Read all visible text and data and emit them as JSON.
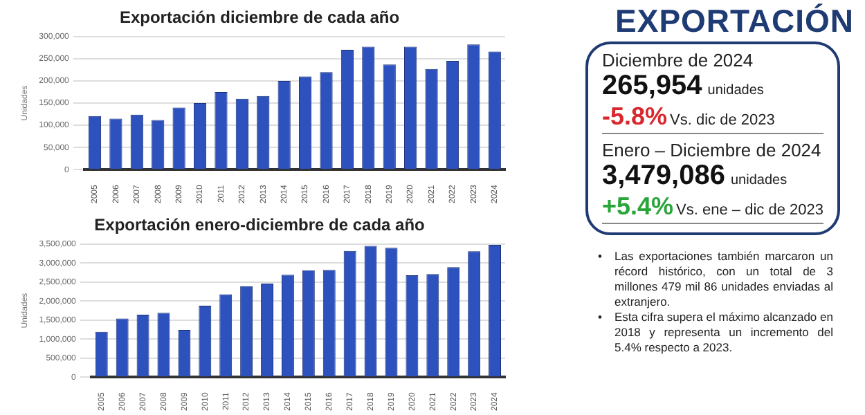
{
  "chart_data": [
    {
      "type": "bar",
      "title": "Exportación diciembre de cada año",
      "ylabel": "Unidades",
      "color": "#2d52bd",
      "grid": "y",
      "categories": [
        "2005",
        "2006",
        "2007",
        "2008",
        "2009",
        "2010",
        "2011",
        "2012",
        "2013",
        "2014",
        "2015",
        "2016",
        "2017",
        "2018",
        "2019",
        "2020",
        "2021",
        "2022",
        "2023",
        "2024"
      ],
      "values": [
        121000,
        115000,
        124000,
        112000,
        140000,
        150000,
        175000,
        160000,
        166000,
        200000,
        210000,
        220000,
        270000,
        277000,
        237000,
        277000,
        227000,
        245000,
        282000,
        266000
      ],
      "ylim": [
        0,
        300000
      ],
      "yticks": [
        {
          "value": 0,
          "label": "0"
        },
        {
          "value": 50000,
          "label": "50,000"
        },
        {
          "value": 100000,
          "label": "100,000"
        },
        {
          "value": 150000,
          "label": "150,000"
        },
        {
          "value": 200000,
          "label": "200,000"
        },
        {
          "value": 250000,
          "label": "250,000"
        },
        {
          "value": 300000,
          "label": "300,000"
        }
      ]
    },
    {
      "type": "bar",
      "title": "Exportación enero-diciembre de cada año",
      "ylabel": "Unidades",
      "color": "#2d52bd",
      "grid": "y",
      "categories": [
        "2005",
        "2006",
        "2007",
        "2008",
        "2009",
        "2010",
        "2011",
        "2012",
        "2013",
        "2014",
        "2015",
        "2016",
        "2017",
        "2018",
        "2019",
        "2020",
        "2021",
        "2022",
        "2023",
        "2024"
      ],
      "values": [
        1190000,
        1540000,
        1640000,
        1690000,
        1240000,
        1880000,
        2180000,
        2390000,
        2460000,
        2690000,
        2810000,
        2820000,
        3320000,
        3450000,
        3400000,
        2680000,
        2710000,
        2890000,
        3310000,
        3480000
      ],
      "ylim": [
        0,
        3500000
      ],
      "yticks": [
        {
          "value": 0,
          "label": "0"
        },
        {
          "value": 500000,
          "label": "500,000"
        },
        {
          "value": 1000000,
          "label": "1,000,000"
        },
        {
          "value": 1500000,
          "label": "1,500,000"
        },
        {
          "value": 2000000,
          "label": "2,000,000"
        },
        {
          "value": 2500000,
          "label": "2,500,000"
        },
        {
          "value": 3000000,
          "label": "3,000,000"
        },
        {
          "value": 3500000,
          "label": "3,500,000"
        }
      ]
    },
    {
      "type": "other",
      "title": "EXPORTACIÓN",
      "annotations": [
        "Diciembre de 2024",
        "265,954",
        "unidades",
        "-5.8%",
        "Vs. dic de 2023",
        "Enero – Diciembre de 2024",
        "3,479,086",
        "unidades",
        "+5.4%",
        "Vs. ene – dic de 2023",
        "•",
        "Las exportaciones también marcaron un récord histórico, con un total de 3 millones 479 mil 86 unidades enviadas al extranjero.",
        "•",
        "Esta cifra supera el máximo alcanzado en 2018 y representa un incremento del 5.4% respecto a 2023."
      ]
    }
  ]
}
